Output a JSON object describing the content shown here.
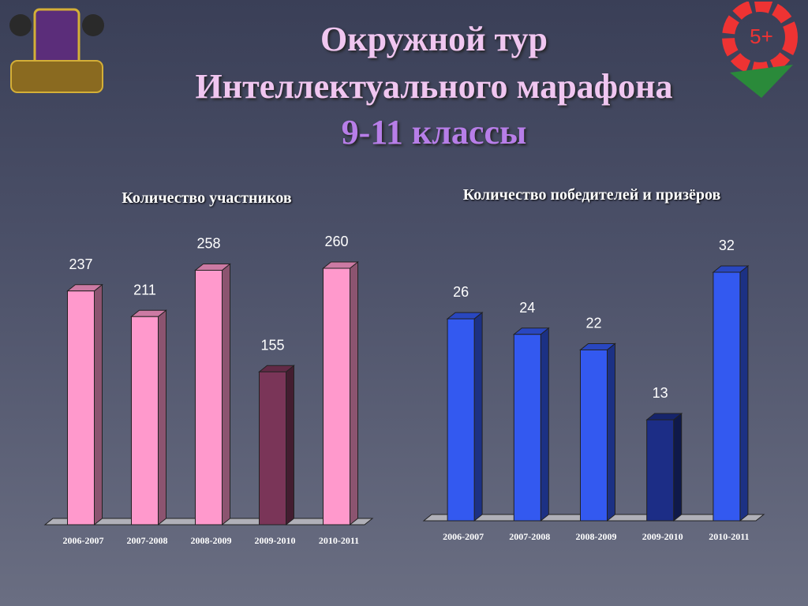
{
  "header": {
    "lines": [
      "Окружной тур",
      "Интеллектуального марафона",
      "9-11 классы"
    ],
    "badge": "5+"
  },
  "chart_data": [
    {
      "type": "bar",
      "title": "Количество  участников",
      "categories": [
        "2006-2007",
        "2007-2008",
        "2008-2009",
        "2009-2010",
        "2010-2011"
      ],
      "values": [
        237,
        211,
        258,
        155,
        260
      ],
      "colors": [
        "#ff99cc",
        "#ff99cc",
        "#ff99cc",
        "#7a3558",
        "#ff99cc"
      ]
    },
    {
      "type": "bar",
      "title": "Количество  победителей  и призёров",
      "categories": [
        "2006-2007",
        "2007-2008",
        "2008-2009",
        "2009-2010",
        "2010-2011"
      ],
      "values": [
        26,
        24,
        22,
        13,
        32
      ],
      "colors": [
        "#3359f0",
        "#3359f0",
        "#3359f0",
        "#1c2d86",
        "#3359f0"
      ]
    }
  ]
}
